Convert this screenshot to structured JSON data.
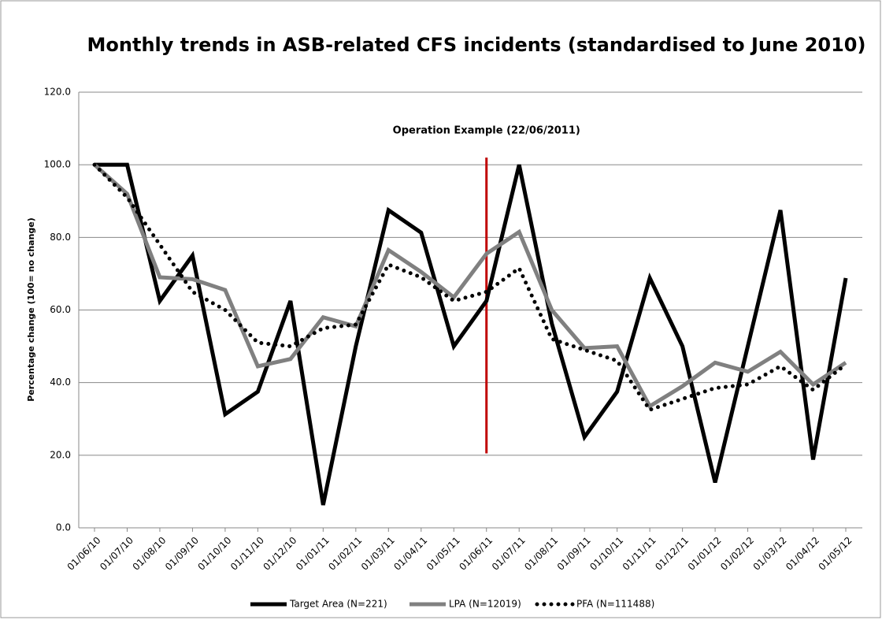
{
  "chart_data": {
    "type": "line",
    "title": "Monthly trends in ASB-related CFS incidents (standardised to June 2010)",
    "y_label": "Percentage change  (100= no change)",
    "categories": [
      "01/06/10",
      "01/07/10",
      "01/08/10",
      "01/09/10",
      "01/10/10",
      "01/11/10",
      "01/12/10",
      "01/01/11",
      "01/02/11",
      "01/03/11",
      "01/04/11",
      "01/05/11",
      "01/06/11",
      "01/07/11",
      "01/08/11",
      "01/09/11",
      "01/10/11",
      "01/11/11",
      "01/12/11",
      "01/01/12",
      "01/02/12",
      "01/03/12",
      "01/04/12",
      "01/05/12"
    ],
    "series": [
      {
        "name": "Target Area (N=221)",
        "color": "#000000",
        "style": "solid",
        "values": [
          100,
          100,
          62.5,
          75,
          31.3,
          37.5,
          62.5,
          6.3,
          50,
          87.5,
          81.3,
          50,
          62.5,
          100,
          56.3,
          25,
          37.5,
          68.8,
          50,
          12.5,
          50,
          87.5,
          18.8,
          68.8
        ]
      },
      {
        "name": "LPA (N=12019)",
        "color": "#808080",
        "style": "solid",
        "values": [
          100,
          92,
          69,
          68.5,
          65.5,
          44.5,
          46.5,
          58,
          55.5,
          76.5,
          70.5,
          63.5,
          75.5,
          81.5,
          60,
          49.5,
          50,
          33.5,
          39,
          45.5,
          43,
          48.5,
          39.5,
          45.5
        ]
      },
      {
        "name": "PFA (N=111488)",
        "color": "#000000",
        "style": "dotted",
        "values": [
          100,
          91,
          78,
          65,
          60,
          51,
          50,
          55,
          56,
          72.5,
          69,
          62.5,
          65,
          71.5,
          52,
          49,
          46,
          32.5,
          35.5,
          38.5,
          39.5,
          44.5,
          38,
          45
        ]
      }
    ],
    "annotation": {
      "text": "Operation Example (22/06/2011)",
      "category": "01/06/11",
      "y_range": [
        20.5,
        102
      ],
      "color": "#c00000"
    },
    "ylim": [
      0,
      120
    ],
    "yticks": [
      {
        "value": 0,
        "label": "0.0"
      },
      {
        "value": 20,
        "label": "20.0"
      },
      {
        "value": 40,
        "label": "40.0"
      },
      {
        "value": 60,
        "label": "60.0"
      },
      {
        "value": 80,
        "label": "80.0"
      },
      {
        "value": 100,
        "label": "100.0"
      },
      {
        "value": 120,
        "label": "120.0"
      }
    ],
    "grid": true,
    "legend": "bottom"
  }
}
